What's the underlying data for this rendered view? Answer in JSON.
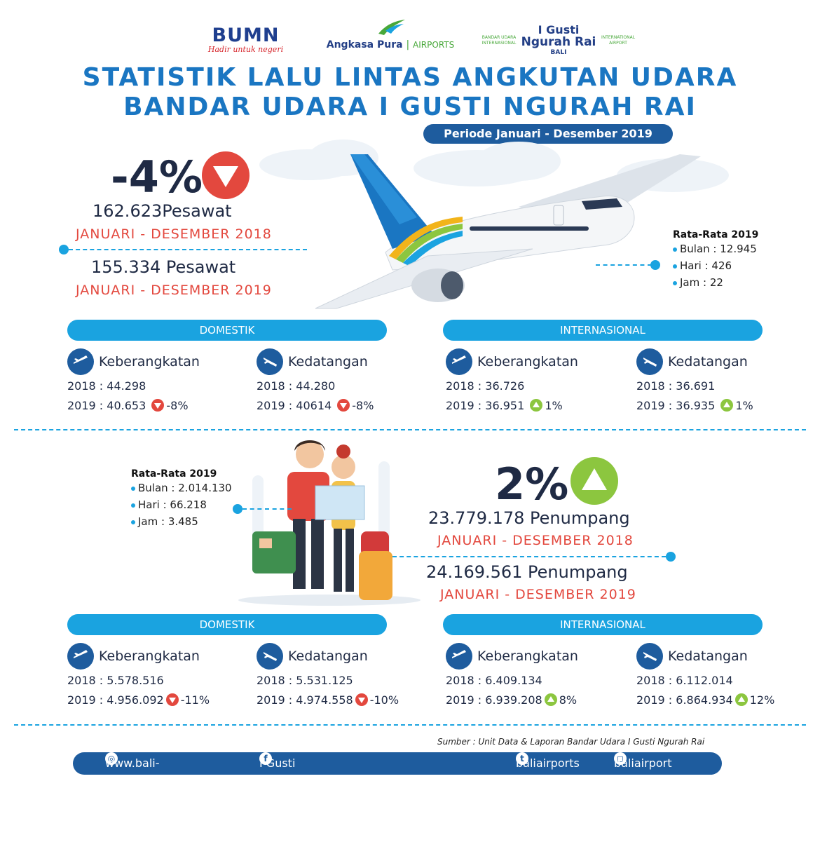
{
  "logos": {
    "bumn": {
      "name": "BUMN",
      "tagline": "Hadir untuk negeri"
    },
    "angkasa_pura": {
      "name": "Angkasa Pura",
      "separator": "|",
      "suffix": "AIRPORTS"
    },
    "gusti": {
      "line1": "I Gusti",
      "line2": "Ngurah Rai",
      "line3": "BALI",
      "left": "BANDAR UDARA INTERNASIONAL",
      "right": "INTERNATIONAL AIRPORT"
    }
  },
  "title": {
    "line1": "STATISTIK LALU LINTAS ANGKUTAN UDARA",
    "line2": "BANDAR UDARA I GUSTI NGURAH RAI"
  },
  "period": "Periode Januari - Desember 2019",
  "aircraft": {
    "change": "-4%",
    "value_2018": "162.623Pesawat",
    "label_2018": "JANUARI - DESEMBER 2018",
    "value_2019": "155.334 Pesawat",
    "label_2019": "JANUARI - DESEMBER 2019",
    "avg": {
      "heading": "Rata-Rata 2019",
      "bulan": "Bulan : 12.945",
      "hari": "Hari : 426",
      "jam": "Jam : 22"
    },
    "domestic": {
      "label": "DOMESTIK",
      "departure": {
        "label": "Keberangkatan",
        "y2018": "2018 :  44.298",
        "y2019": "2019 :  40.653",
        "change": "-8%",
        "trend": "down"
      },
      "arrival": {
        "label": "Kedatangan",
        "y2018": "2018 :  44.280",
        "y2019": "2019 :  40614",
        "change": "-8%",
        "trend": "down"
      }
    },
    "international": {
      "label": "INTERNASIONAL",
      "departure": {
        "label": "Keberangkatan",
        "y2018": "2018 : 36.726",
        "y2019": "2019 : 36.951",
        "change": "1%",
        "trend": "up"
      },
      "arrival": {
        "label": "Kedatangan",
        "y2018": "2018 : 36.691",
        "y2019": "2019 : 36.935",
        "change": "1%",
        "trend": "up"
      }
    }
  },
  "passengers": {
    "change": "2%",
    "value_2018": "23.779.178 Penumpang",
    "label_2018": "JANUARI - DESEMBER 2018",
    "value_2019": "24.169.561 Penumpang",
    "label_2019": "JANUARI - DESEMBER 2019",
    "avg": {
      "heading": "Rata-Rata 2019",
      "bulan": "Bulan :  2.014.130",
      "hari": "Hari : 66.218",
      "jam": "Jam :  3.485"
    },
    "domestic": {
      "label": "DOMESTIK",
      "departure": {
        "label": "Keberangkatan",
        "y2018": "2018 :  5.578.516",
        "y2019": "2019 :  4.956.092",
        "change": "-11%",
        "trend": "down"
      },
      "arrival": {
        "label": "Kedatangan",
        "y2018": "2018 :  5.531.125",
        "y2019": "2019 :  4.974.558",
        "change": "-10%",
        "trend": "down"
      }
    },
    "international": {
      "label": "INTERNASIONAL",
      "departure": {
        "label": "Keberangkatan",
        "y2018": "2018 :  6.409.134",
        "y2019": "2019 :  6.939.208",
        "change": "8%",
        "trend": "up"
      },
      "arrival": {
        "label": "Kedatangan",
        "y2018": "2018 :  6.112.014",
        "y2019": "2019 :  6.864.934",
        "change": "12%",
        "trend": "up"
      }
    }
  },
  "source": "Sumber : Unit Data & Laporan Bandar Udara I Gusti Ngurah Rai",
  "footer": {
    "website": "www.bali-airport.com",
    "facebook": "I Gusti Ngurah Rai International Airport",
    "twitter": "baliairports",
    "instagram": "baliairport"
  },
  "colors": {
    "navy": "#1e5c9e",
    "cyan": "#1aa3e0",
    "red": "#e3483e",
    "green": "#8cc63f"
  }
}
